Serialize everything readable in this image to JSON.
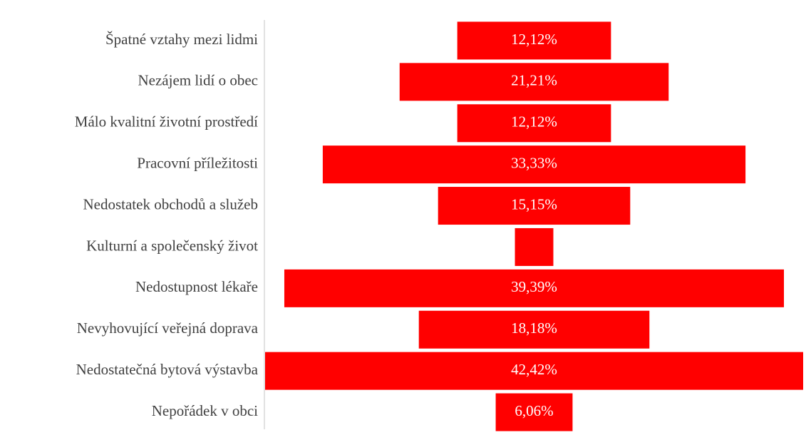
{
  "chart_data": {
    "type": "funnel",
    "categories": [
      "Špatné vztahy mezi lidmi",
      "Nezájem lidí o obec",
      "Málo kvalitní životní prostředí",
      "Pracovní příležitosti",
      "Nedostatek obchodů a služeb",
      "Kulturní a společenský život",
      "Nedostupnost lékaře",
      "Nevyhovující veřejná doprava",
      "Nedostatečná bytová výstavba",
      "Nepořádek v obci"
    ],
    "values": [
      12.12,
      21.21,
      12.12,
      33.33,
      15.15,
      3.03,
      39.39,
      18.18,
      42.42,
      6.06
    ],
    "value_labels": [
      "12,12%",
      "21,21%",
      "12,12%",
      "33,33%",
      "15,15%",
      null,
      "39,39%",
      "18,18%",
      "42,42%",
      "6,06%"
    ],
    "color": "#ff0000"
  }
}
